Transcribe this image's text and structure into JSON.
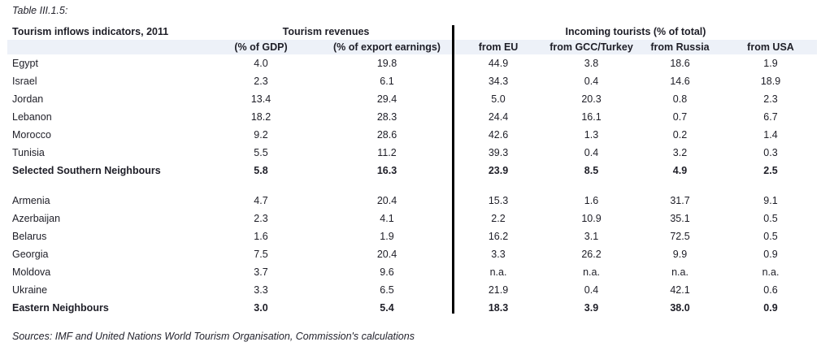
{
  "table": {
    "caption": "Table III.1.5:",
    "title": "Tourism inflows indicators, 2011",
    "group_headers": [
      "Tourism revenues",
      "Incoming tourists (% of total)"
    ],
    "columns": [
      "(% of GDP)",
      "(% of export earnings)",
      "from EU",
      "from GCC/Turkey",
      "from Russia",
      "from USA"
    ],
    "sections": [
      {
        "rows": [
          {
            "label": "Egypt",
            "bold": false,
            "values": [
              "4.0",
              "19.8",
              "44.9",
              "3.8",
              "18.6",
              "1.9"
            ]
          },
          {
            "label": "Israel",
            "bold": false,
            "values": [
              "2.3",
              "6.1",
              "34.3",
              "0.4",
              "14.6",
              "18.9"
            ]
          },
          {
            "label": "Jordan",
            "bold": false,
            "values": [
              "13.4",
              "29.4",
              "5.0",
              "20.3",
              "0.8",
              "2.3"
            ]
          },
          {
            "label": "Lebanon",
            "bold": false,
            "values": [
              "18.2",
              "28.3",
              "24.4",
              "16.1",
              "0.7",
              "6.7"
            ]
          },
          {
            "label": "Morocco",
            "bold": false,
            "values": [
              "9.2",
              "28.6",
              "42.6",
              "1.3",
              "0.2",
              "1.4"
            ]
          },
          {
            "label": "Tunisia",
            "bold": false,
            "values": [
              "5.5",
              "11.2",
              "39.3",
              "0.4",
              "3.2",
              "0.3"
            ]
          },
          {
            "label": "Selected Southern Neighbours",
            "bold": true,
            "values": [
              "5.8",
              "16.3",
              "23.9",
              "8.5",
              "4.9",
              "2.5"
            ]
          }
        ]
      },
      {
        "rows": [
          {
            "label": "Armenia",
            "bold": false,
            "values": [
              "4.7",
              "20.4",
              "15.3",
              "1.6",
              "31.7",
              "9.1"
            ]
          },
          {
            "label": "Azerbaijan",
            "bold": false,
            "values": [
              "2.3",
              "4.1",
              "2.2",
              "10.9",
              "35.1",
              "0.5"
            ]
          },
          {
            "label": "Belarus",
            "bold": false,
            "values": [
              "1.6",
              "1.9",
              "16.2",
              "3.1",
              "72.5",
              "0.5"
            ]
          },
          {
            "label": "Georgia",
            "bold": false,
            "values": [
              "7.5",
              "20.4",
              "3.3",
              "26.2",
              "9.9",
              "0.9"
            ]
          },
          {
            "label": "Moldova",
            "bold": false,
            "values": [
              "3.7",
              "9.6",
              "n.a.",
              "n.a.",
              "n.a.",
              "n.a."
            ]
          },
          {
            "label": "Ukraine",
            "bold": false,
            "values": [
              "3.3",
              "6.5",
              "21.9",
              "0.4",
              "42.1",
              "0.6"
            ]
          },
          {
            "label": "Eastern Neighbours",
            "bold": true,
            "values": [
              "3.0",
              "5.4",
              "18.3",
              "3.9",
              "38.0",
              "0.9"
            ]
          }
        ]
      }
    ],
    "source": "Sources: IMF and United Nations World Tourism Organisation, Commission's calculations"
  },
  "colors": {
    "header_band": "#edf1f8",
    "text": "#1e1e27",
    "divider": "#000000"
  }
}
